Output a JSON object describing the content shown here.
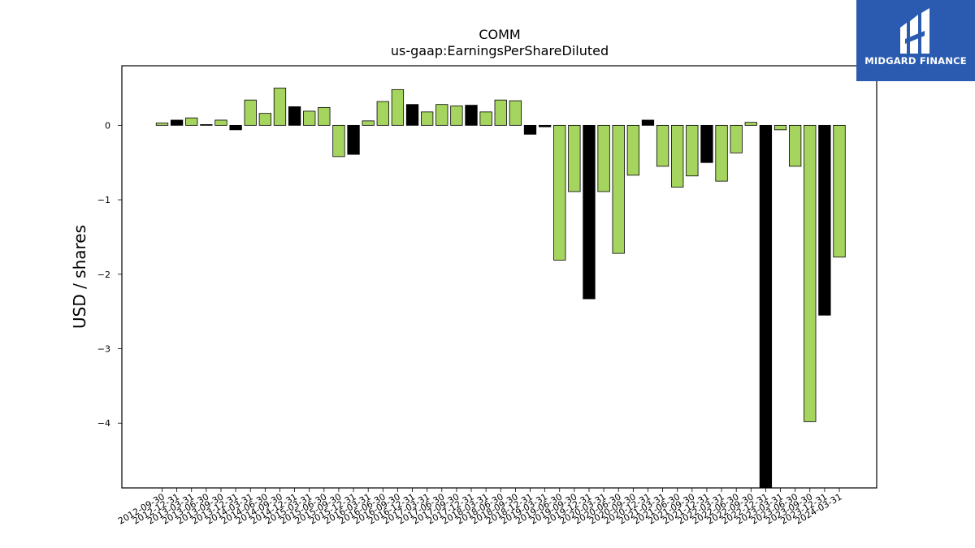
{
  "logo": {
    "text": "MIDGARD FINANCE"
  },
  "chart_data": {
    "type": "bar",
    "title": "COMM",
    "subtitle": "us-gaap:EarningsPerShareDiluted",
    "ylabel": "USD / shares",
    "xlabel": "",
    "ylim": [
      -4.87,
      0.8
    ],
    "yticks": [
      0,
      -1,
      -2,
      -3,
      -4
    ],
    "ytick_labels": [
      "0",
      "−1",
      "−2",
      "−3",
      "−4"
    ],
    "grid": false,
    "colors": {
      "green": "#a6d55f",
      "black": "#000000",
      "edge": "#000000"
    },
    "categories": [
      "2012-09-30",
      "2012-12-31",
      "2013-03-31",
      "2013-06-30",
      "2013-09-30",
      "2013-12-31",
      "2014-03-31",
      "2014-06-30",
      "2014-09-30",
      "2014-12-31",
      "2015-03-31",
      "2015-06-30",
      "2015-09-30",
      "2015-12-31",
      "2016-03-31",
      "2016-06-30",
      "2016-09-30",
      "2016-12-31",
      "2017-03-31",
      "2017-06-30",
      "2017-09-30",
      "2017-12-31",
      "2018-03-31",
      "2018-06-30",
      "2018-09-30",
      "2018-12-31",
      "2019-03-31",
      "2019-06-30",
      "2019-09-30",
      "2019-12-31",
      "2020-03-31",
      "2020-06-30",
      "2020-09-30",
      "2020-12-31",
      "2021-03-31",
      "2021-06-30",
      "2021-09-30",
      "2021-12-31",
      "2022-03-31",
      "2022-06-30",
      "2022-09-30",
      "2022-12-31",
      "2023-03-31",
      "2023-06-30",
      "2023-09-30",
      "2023-12-31",
      "2024-03-31"
    ],
    "values": [
      0.03,
      0.07,
      0.1,
      0.01,
      0.07,
      -0.06,
      0.34,
      0.16,
      0.5,
      0.25,
      0.19,
      0.24,
      -0.42,
      -0.39,
      0.06,
      0.32,
      0.48,
      0.28,
      0.18,
      0.28,
      0.26,
      0.27,
      0.18,
      0.34,
      0.33,
      -0.12,
      -0.02,
      -1.81,
      -0.89,
      -2.33,
      -0.89,
      -1.72,
      -0.67,
      0.07,
      -0.55,
      -0.83,
      -0.68,
      -0.5,
      -0.75,
      -0.37,
      0.04,
      -4.87,
      -0.06,
      -0.55,
      -3.98,
      -2.55,
      -1.77
    ],
    "bar_colors": [
      "green",
      "black",
      "green",
      "black",
      "green",
      "black",
      "green",
      "green",
      "green",
      "black",
      "green",
      "green",
      "green",
      "black",
      "green",
      "green",
      "green",
      "black",
      "green",
      "green",
      "green",
      "black",
      "green",
      "green",
      "green",
      "black",
      "black",
      "green",
      "green",
      "black",
      "green",
      "green",
      "green",
      "black",
      "green",
      "green",
      "green",
      "black",
      "green",
      "green",
      "green",
      "black",
      "green",
      "green",
      "green",
      "black",
      "green"
    ]
  }
}
